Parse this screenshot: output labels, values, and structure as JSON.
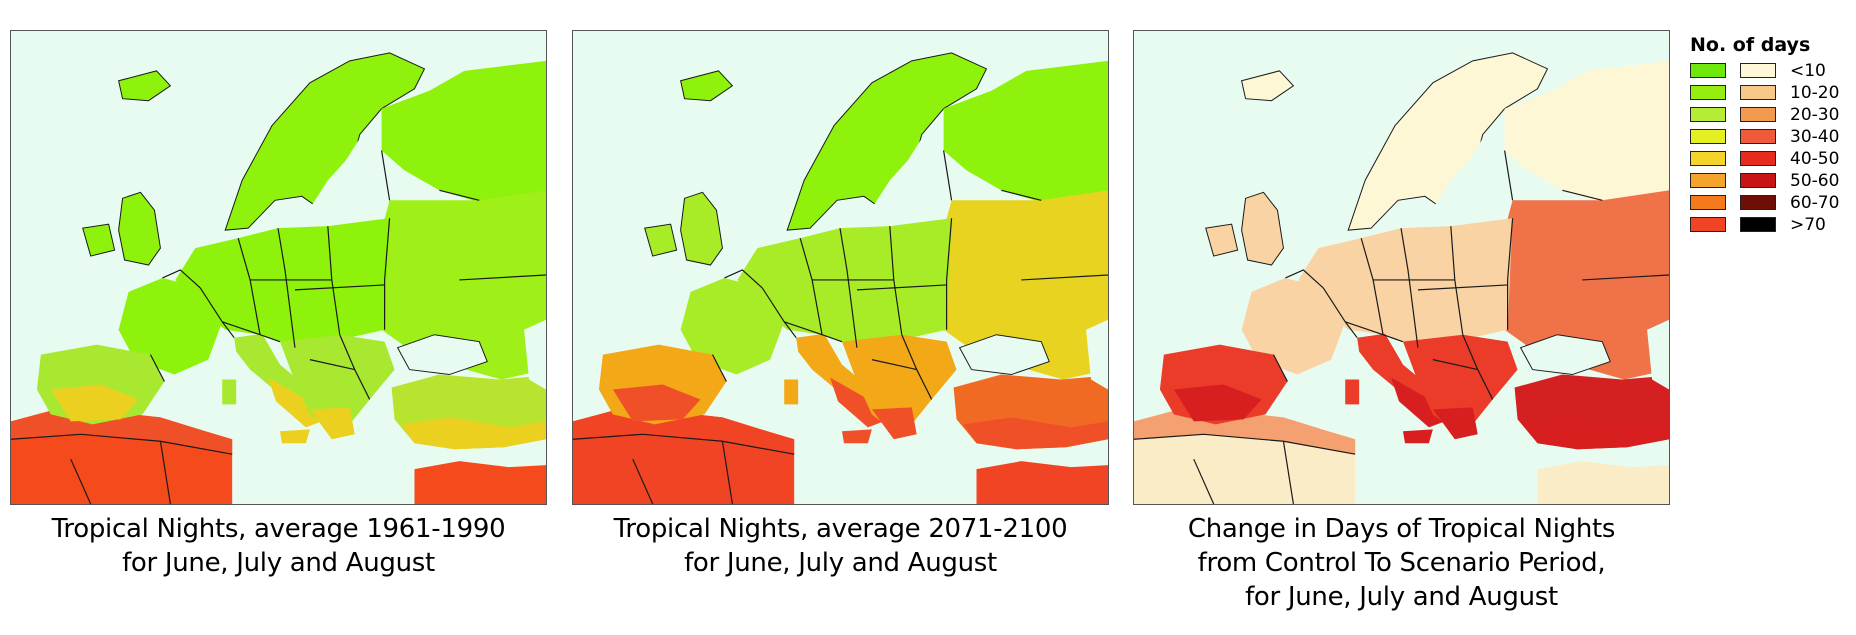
{
  "maps": [
    {
      "caption_line1": "Tropical Nights, average 1961-1990",
      "caption_line2": "for June, July and August",
      "caption_line3": "",
      "palette": {
        "north": "#8ef20c",
        "temperate": "#8ef20c",
        "east": "#9ef018",
        "south_europe": "#a8e830",
        "mediterranean": "#ecd020",
        "turkey": "#b8e430",
        "africa_coast": "#f05028",
        "africa": "#f44a1c"
      }
    },
    {
      "caption_line1": "Tropical Nights, average 2071-2100",
      "caption_line2": "for June, July and August",
      "caption_line3": "",
      "palette": {
        "north": "#8ef20c",
        "temperate": "#a8ec28",
        "east": "#e8d420",
        "south_europe": "#f3a818",
        "mediterranean": "#f05028",
        "turkey": "#f06a24",
        "africa_coast": "#f04424",
        "africa": "#f04424"
      }
    },
    {
      "caption_line1": "Change in Days of Tropical Nights",
      "caption_line2": "from Control To Scenario Period,",
      "caption_line3": "for June, July and August",
      "palette": {
        "north": "#fdf7d5",
        "temperate": "#f9d3a4",
        "east": "#ef7248",
        "south_europe": "#ea3c28",
        "mediterranean": "#d81f1f",
        "turkey": "#d42020",
        "africa_coast": "#f4a070",
        "africa": "#fbecc8"
      }
    }
  ],
  "legend": {
    "title": "No. of days",
    "rows": [
      {
        "label": "<10",
        "color_a": "#6ee80a",
        "color_b": "#fff8d8"
      },
      {
        "label": "10-20",
        "color_a": "#96ee10",
        "color_b": "#f8c888"
      },
      {
        "label": "20-30",
        "color_a": "#b4ec38",
        "color_b": "#f29a50"
      },
      {
        "label": "30-40",
        "color_a": "#e4f024",
        "color_b": "#ee5a3a"
      },
      {
        "label": "40-50",
        "color_a": "#f4d42a",
        "color_b": "#e62a1e"
      },
      {
        "label": "50-60",
        "color_a": "#f4a42c",
        "color_b": "#c81414"
      },
      {
        "label": "60-70",
        "color_a": "#f47a1c",
        "color_b": "#6e0e06"
      },
      {
        "label": ">70",
        "color_a": "#f04424",
        "color_b": "#000000"
      }
    ]
  },
  "colors": {
    "sea": "#e8fbf1",
    "borders": "#1a1a1a"
  }
}
